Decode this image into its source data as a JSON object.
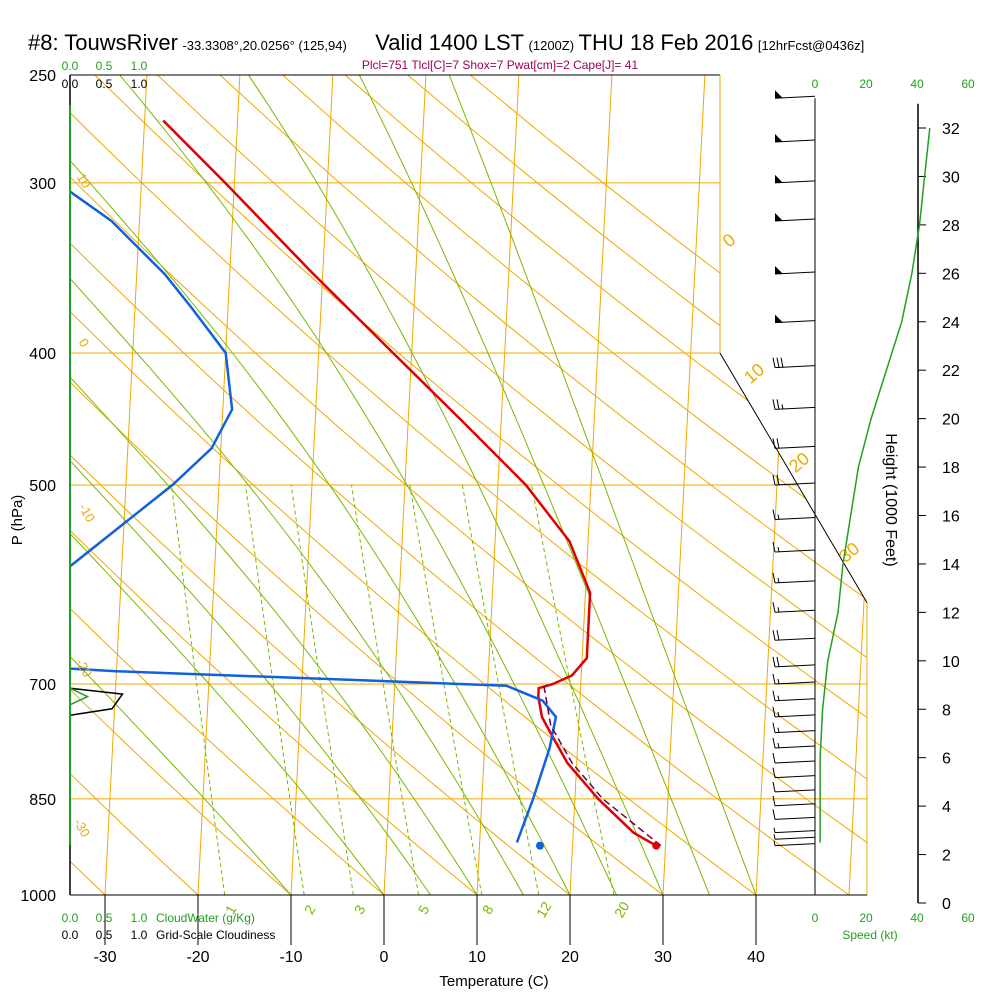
{
  "header": {
    "station": "#8: TouwsRiver",
    "coords": "-33.3308°,20.0256° (125,94)",
    "valid": "Valid 1400 LST",
    "zulu": "(1200Z)",
    "date": "THU 18 Feb 2016",
    "forecast": "[12hrFcst@0436z]",
    "params": "Plcl=751 Tlcl[C]=7 Shox=7 Pwat[cm]=2 Cape[J]= 41"
  },
  "colors": {
    "isotherm": "#f0a800",
    "isobar": "#f0a800",
    "dry_adiabat": "#f0a800",
    "moist_adiabat": "#7ab800",
    "mixing_ratio": "#7ab800",
    "temperature": "#e00000",
    "dewpoint": "#1060e0",
    "parcel": "#6a0050",
    "scale_green": "#20a020",
    "wind_barb": "#000000"
  },
  "chart_data": {
    "type": "line",
    "chart_kind": "skew-T log-P sounding",
    "xlabel": "Temperature (C)",
    "ylabel": "P (hPa)",
    "right_label": "Height (1000 Feet)",
    "x_ticks": [
      -30,
      -20,
      -10,
      0,
      10,
      20,
      30,
      40
    ],
    "p_ticks": [
      250,
      300,
      400,
      500,
      700,
      850,
      1000
    ],
    "height_ticks": [
      0,
      2,
      4,
      6,
      8,
      10,
      12,
      14,
      16,
      18,
      20,
      22,
      24,
      26,
      28,
      30,
      32
    ],
    "p_range": [
      250,
      1000
    ],
    "dry_adiabat_labels": [
      "0",
      "10",
      "20",
      "30"
    ],
    "left_isotherm_labels": [
      "10",
      "0",
      "-10",
      "-20",
      "-30"
    ],
    "mixing_ratio_labels": [
      "1",
      "2",
      "3",
      "5",
      "8",
      "12",
      "20"
    ],
    "mixing_ratio_values": [
      1,
      2,
      3,
      5,
      8,
      12,
      20
    ],
    "cloud_water_label": "CloudWater (g/Kg)",
    "cloudiness_label": "Grid-Scale Cloudiness",
    "cloud_scale_ticks": [
      "0.0",
      "0.5",
      "1.0"
    ],
    "speed_label": "Speed (kt)",
    "speed_ticks": [
      "0",
      "20",
      "40",
      "60"
    ],
    "series": [
      {
        "name": "temperature",
        "points": [
          {
            "p": 920,
            "t": 29.0
          },
          {
            "p": 900,
            "t": 26.5
          },
          {
            "p": 850,
            "t": 22.5
          },
          {
            "p": 800,
            "t": 19.0
          },
          {
            "p": 760,
            "t": 17.0
          },
          {
            "p": 740,
            "t": 16.0
          },
          {
            "p": 715,
            "t": 15.5
          },
          {
            "p": 705,
            "t": 15.5
          },
          {
            "p": 700,
            "t": 17.0
          },
          {
            "p": 690,
            "t": 19.0
          },
          {
            "p": 670,
            "t": 20.5
          },
          {
            "p": 600,
            "t": 20.5
          },
          {
            "p": 550,
            "t": 18.0
          },
          {
            "p": 500,
            "t": 13.0
          },
          {
            "p": 450,
            "t": 6.0
          },
          {
            "p": 400,
            "t": -2.0
          },
          {
            "p": 350,
            "t": -11.0
          },
          {
            "p": 300,
            "t": -21.0
          },
          {
            "p": 270,
            "t": -28.0
          }
        ]
      },
      {
        "name": "dewpoint",
        "points": [
          {
            "p": 915,
            "t": 14.0
          },
          {
            "p": 850,
            "t": 15.5
          },
          {
            "p": 780,
            "t": 17.0
          },
          {
            "p": 740,
            "t": 17.5
          },
          {
            "p": 720,
            "t": 16.0
          },
          {
            "p": 702,
            "t": 12.0
          },
          {
            "p": 695,
            "t": -5.0
          },
          {
            "p": 685,
            "t": -30.0
          },
          {
            "p": 670,
            "t": -55.0
          },
          {
            "p": 640,
            "t": -43.0
          },
          {
            "p": 600,
            "t": -39.0
          },
          {
            "p": 500,
            "t": -25.0
          },
          {
            "p": 470,
            "t": -21.0
          },
          {
            "p": 440,
            "t": -19.0
          },
          {
            "p": 400,
            "t": -20.0
          },
          {
            "p": 370,
            "t": -24.0
          },
          {
            "p": 350,
            "t": -27.0
          },
          {
            "p": 320,
            "t": -33.0
          },
          {
            "p": 300,
            "t": -39.0
          },
          {
            "p": 270,
            "t": -46.0
          }
        ]
      },
      {
        "name": "parcel",
        "points": [
          {
            "p": 920,
            "t": 29.5
          },
          {
            "p": 850,
            "t": 23.0
          },
          {
            "p": 800,
            "t": 19.5
          },
          {
            "p": 751,
            "t": 17.0
          },
          {
            "p": 700,
            "t": 16.0
          }
        ]
      }
    ],
    "surface_markers": [
      {
        "name": "temperature",
        "p": 920,
        "t": 29.0
      },
      {
        "name": "dewpoint",
        "p": 920,
        "t": 16.5
      }
    ],
    "cloudiness_profile": [
      {
        "p": 1000,
        "v": 0.0
      },
      {
        "p": 705,
        "v": 0.0
      },
      {
        "p": 712,
        "v": 0.75
      },
      {
        "p": 730,
        "v": 0.6
      },
      {
        "p": 738,
        "v": 0.0
      },
      {
        "p": 250,
        "v": 0.0
      }
    ],
    "cloud_water_profile": [
      {
        "p": 705,
        "v": 0.0
      },
      {
        "p": 715,
        "v": 0.25
      },
      {
        "p": 725,
        "v": 0.0
      }
    ],
    "wind_barb_levels": [
      260,
      280,
      300,
      320,
      350,
      380,
      410,
      440,
      470,
      500,
      530,
      560,
      590,
      620,
      650,
      680,
      700,
      720,
      740,
      760,
      780,
      800,
      820,
      840,
      860,
      880,
      900,
      910,
      920
    ],
    "wind_barb_speeds_kt": [
      55,
      55,
      55,
      55,
      55,
      55,
      30,
      25,
      20,
      20,
      15,
      15,
      15,
      15,
      20,
      20,
      15,
      15,
      15,
      15,
      15,
      10,
      10,
      10,
      10,
      10,
      5,
      5,
      5
    ],
    "speed_profile": [
      {
        "h": 2.5,
        "v": 2
      },
      {
        "h": 4.0,
        "v": 2
      },
      {
        "h": 6.0,
        "v": 2
      },
      {
        "h": 8.0,
        "v": 3
      },
      {
        "h": 10.0,
        "v": 5
      },
      {
        "h": 12.0,
        "v": 9
      },
      {
        "h": 14.0,
        "v": 11
      },
      {
        "h": 16.0,
        "v": 14
      },
      {
        "h": 18.0,
        "v": 17
      },
      {
        "h": 20.0,
        "v": 22
      },
      {
        "h": 22.0,
        "v": 28
      },
      {
        "h": 24.0,
        "v": 34
      },
      {
        "h": 26.0,
        "v": 38
      },
      {
        "h": 28.0,
        "v": 41
      },
      {
        "h": 30.0,
        "v": 43
      },
      {
        "h": 32.0,
        "v": 45
      }
    ]
  }
}
